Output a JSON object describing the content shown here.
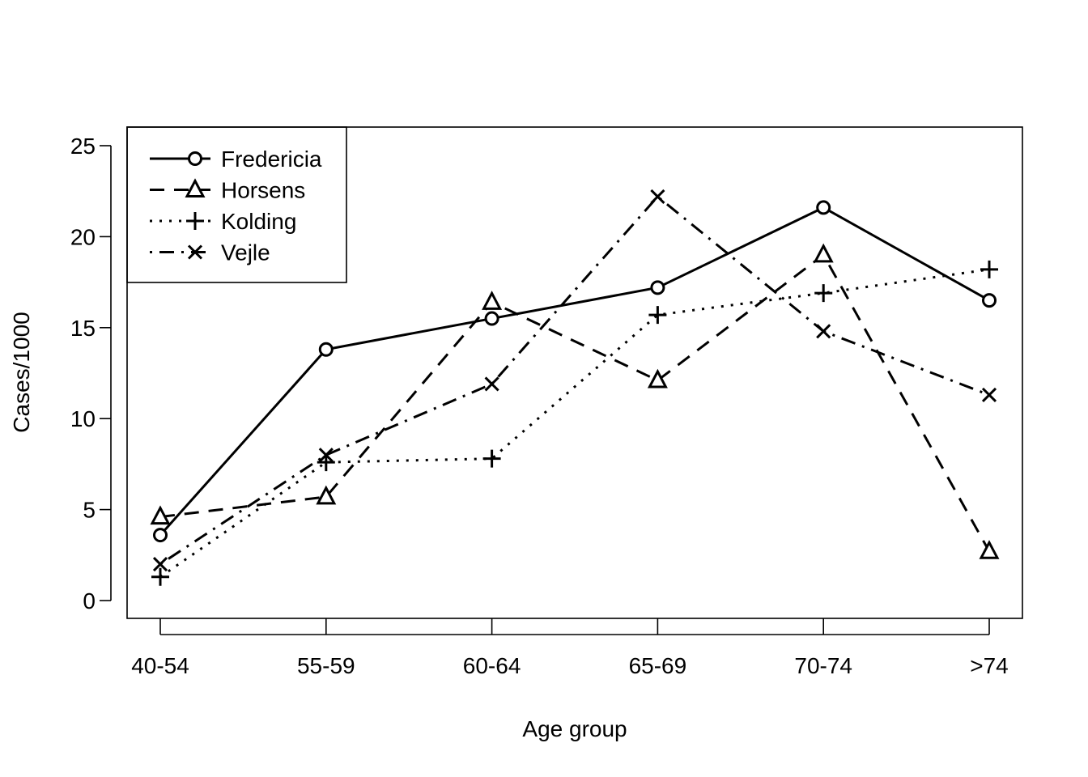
{
  "chart_data": {
    "type": "line",
    "title": "",
    "xlabel": "Age group",
    "ylabel": "Cases/1000",
    "categories": [
      "40-54",
      "55-59",
      "60-64",
      "65-69",
      "70-74",
      ">74"
    ],
    "ylim": [
      -1,
      26
    ],
    "yticks": [
      "0",
      "5",
      "10",
      "15",
      "20",
      "25"
    ],
    "grid": false,
    "legend_position": "top-left",
    "series": [
      {
        "name": "Fredericia",
        "marker": "circle",
        "line_style": "solid",
        "values": [
          3.6,
          13.8,
          15.5,
          17.2,
          21.6,
          16.5
        ]
      },
      {
        "name": "Horsens",
        "marker": "triangle",
        "line_style": "dashed",
        "values": [
          4.6,
          5.7,
          16.4,
          12.1,
          19.0,
          2.7
        ]
      },
      {
        "name": "Kolding",
        "marker": "plus",
        "line_style": "dotted",
        "values": [
          1.3,
          7.6,
          7.8,
          15.7,
          16.9,
          18.2
        ]
      },
      {
        "name": "Vejle",
        "marker": "cross",
        "line_style": "dot-dash",
        "values": [
          2.0,
          8.0,
          11.9,
          22.2,
          14.8,
          11.3
        ]
      }
    ],
    "colors": {
      "ink": "#000000",
      "background": "#ffffff"
    }
  }
}
